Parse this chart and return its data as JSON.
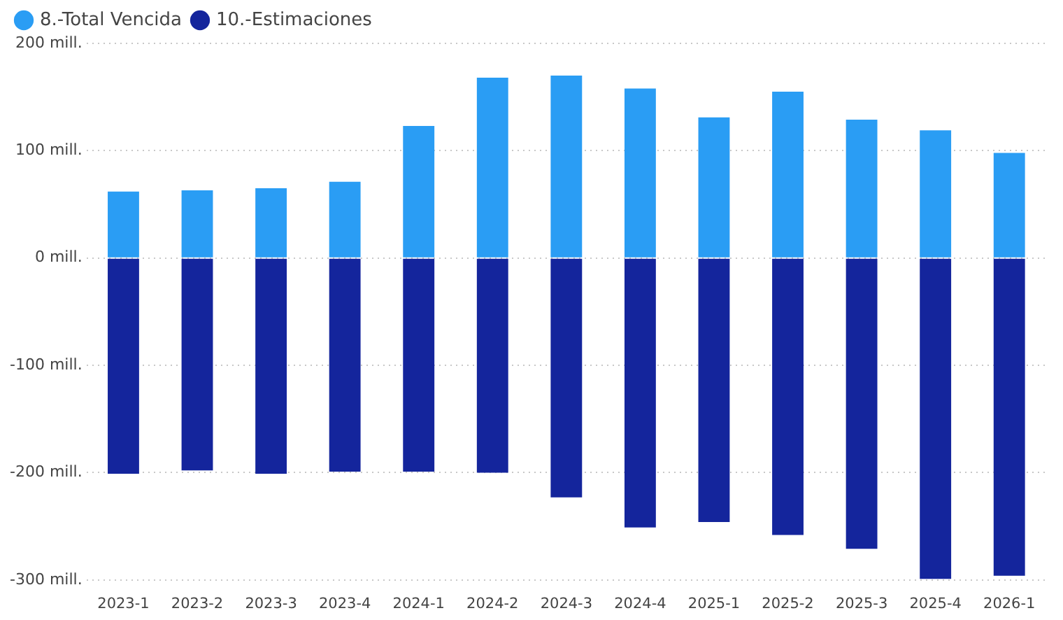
{
  "chart_data": {
    "type": "bar",
    "stacked": true,
    "categories": [
      "2023-1",
      "2023-2",
      "2023-3",
      "2023-4",
      "2024-1",
      "2024-2",
      "2024-3",
      "2024-4",
      "2025-1",
      "2025-2",
      "2025-3",
      "2025-4",
      "2026-1"
    ],
    "series": [
      {
        "name": "8.-Total Vencida",
        "color": "#2a9df4",
        "values": [
          62,
          63,
          65,
          71,
          123,
          168,
          170,
          158,
          131,
          155,
          129,
          119,
          98
        ]
      },
      {
        "name": "10.-Estimaciones",
        "color": "#14259c",
        "values": [
          -201,
          -198,
          -201,
          -199,
          -199,
          -200,
          -223,
          -251,
          -246,
          -258,
          -271,
          -299,
          -296
        ]
      }
    ],
    "ylim": [
      -300,
      200
    ],
    "yticks": [
      {
        "value": -300,
        "label": "-300 mill."
      },
      {
        "value": -200,
        "label": "-200 mill."
      },
      {
        "value": -100,
        "label": "-100 mill."
      },
      {
        "value": 0,
        "label": "0 mill."
      },
      {
        "value": 100,
        "label": "100 mill."
      },
      {
        "value": 200,
        "label": "200 mill."
      }
    ],
    "grid": "y",
    "legend": "top left"
  }
}
